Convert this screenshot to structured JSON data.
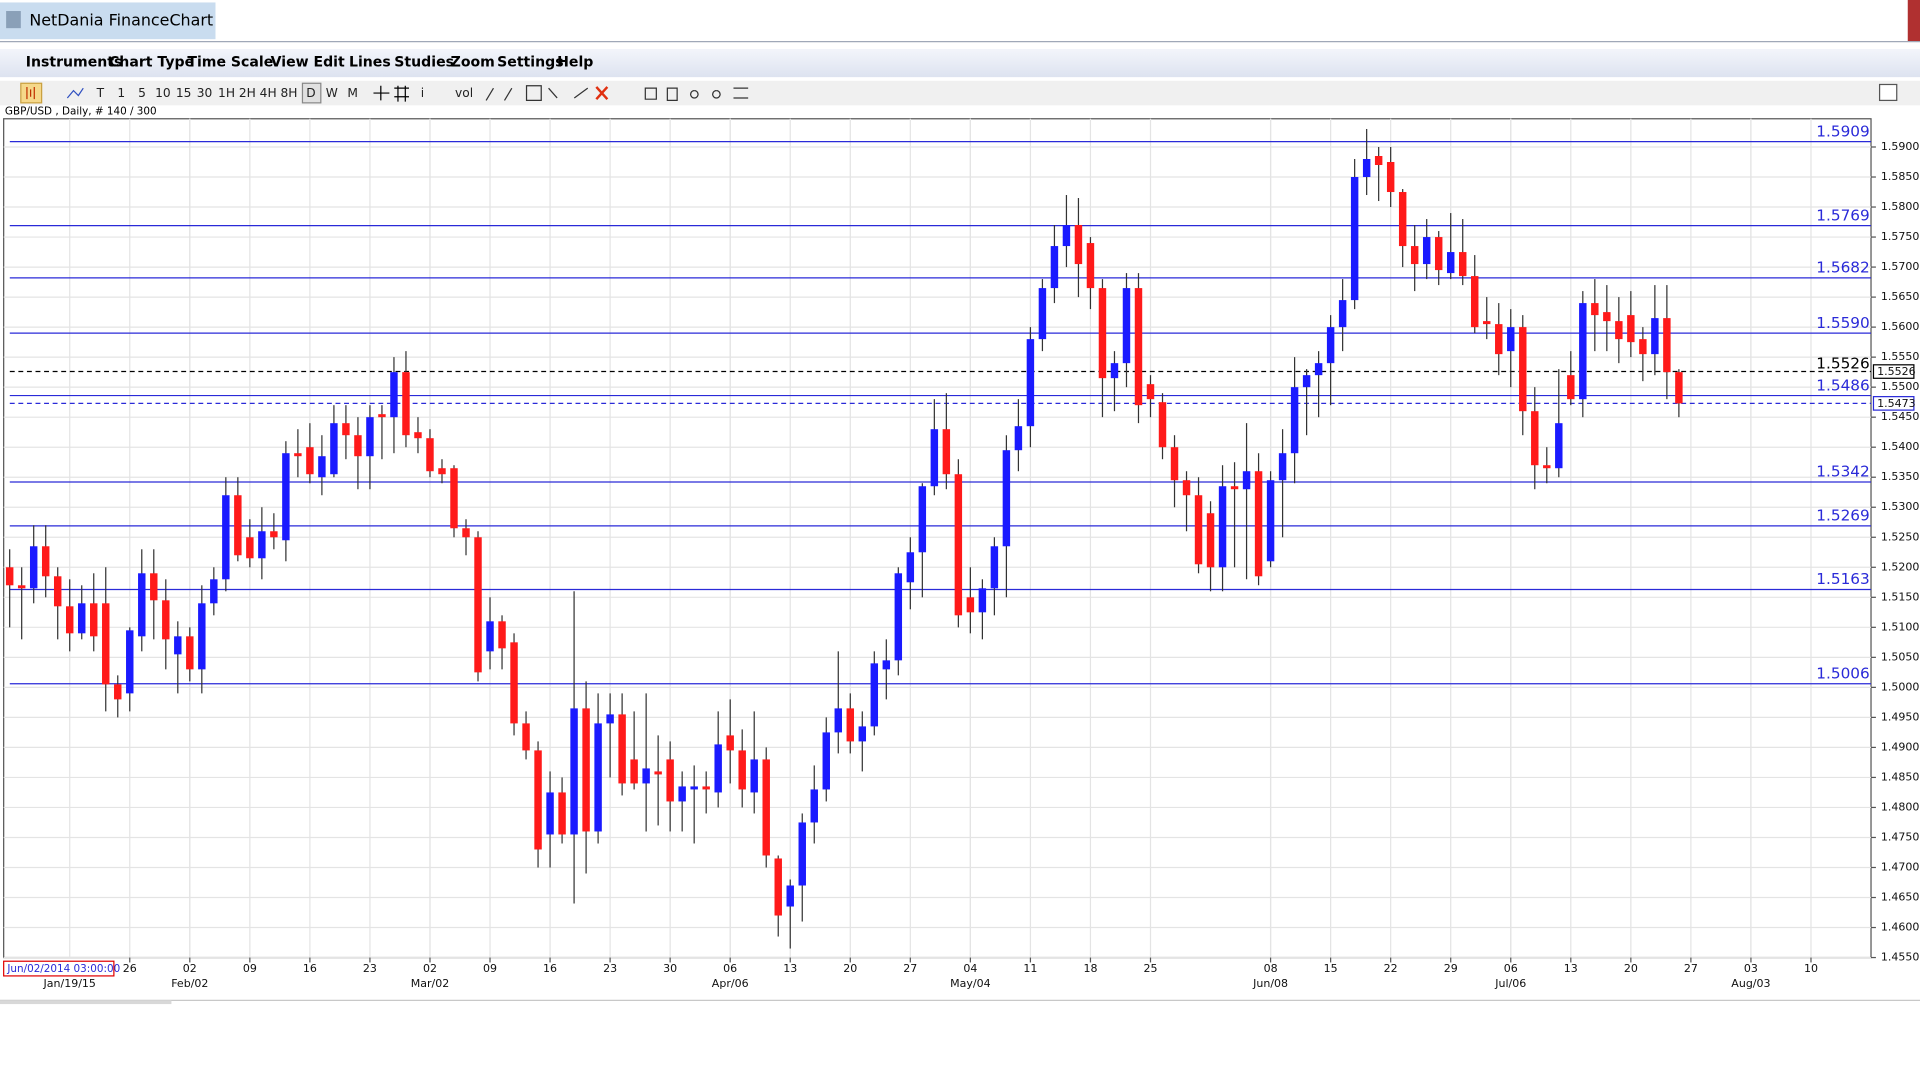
{
  "window": {
    "title": "NetDania FinanceChart",
    "menu": [
      "Instruments",
      "Chart Type",
      "Time Scale",
      "View",
      "Edit",
      "Lines",
      "Studies",
      "Zoom",
      "Settings",
      "Help"
    ],
    "toolbar": [
      "T",
      "1",
      "5",
      "10",
      "15",
      "30",
      "1H",
      "2H",
      "4H",
      "8H",
      "D",
      "W",
      "M",
      "i",
      "vol"
    ],
    "chart_info": "GBP/USD , Daily, # 140 / 300",
    "cursor_date": "Jun/02/2014 03:00:00"
  },
  "chart_data": {
    "type": "candlestick",
    "up_color": "#1a1aff",
    "down_color": "#ff1a1a",
    "open": [
      1.52,
      1.517,
      1.5165,
      1.5235,
      1.5185,
      1.5135,
      1.509,
      1.514,
      1.514,
      1.5005,
      1.499,
      1.5085,
      1.519,
      1.5145,
      1.5055,
      1.5085,
      1.503,
      1.514,
      1.518,
      1.532,
      1.525,
      1.5215,
      1.526,
      1.5245,
      1.539,
      1.54,
      1.535,
      1.5355,
      1.544,
      1.542,
      1.5385,
      1.5455,
      1.545,
      1.5525,
      1.5425,
      1.5415,
      1.5365,
      1.5365,
      1.5265,
      1.525,
      1.506,
      1.511,
      1.5075,
      1.494,
      1.4895,
      1.4755,
      1.4825,
      1.4755,
      1.4965,
      1.476,
      1.494,
      1.4955,
      1.488,
      1.484,
      1.486,
      1.488,
      1.481,
      1.483,
      1.4835,
      1.4825,
      1.492,
      1.4895,
      1.4825,
      1.488,
      1.4715,
      1.4635,
      1.467,
      1.4775,
      1.483,
      1.4925,
      1.4965,
      1.491,
      1.4935,
      1.503,
      1.5045,
      1.5175,
      1.5225,
      1.5335,
      1.543,
      1.5355,
      1.515,
      1.5125,
      1.5165,
      1.5235,
      1.5395,
      1.5435,
      1.558,
      1.5665,
      1.5735,
      1.577,
      1.574,
      1.5665,
      1.5515,
      1.554,
      1.5665,
      1.5505,
      1.5475,
      1.54,
      1.5345,
      1.532,
      1.529,
      1.52,
      1.5335,
      1.533,
      1.536,
      1.521,
      1.5345,
      1.539,
      1.55,
      1.552,
      1.554,
      1.56,
      1.5645,
      1.585,
      1.5885,
      1.5875,
      1.5825,
      1.5735,
      1.5705,
      1.575,
      1.569,
      1.5725,
      1.5685,
      1.561,
      1.5605,
      1.556,
      1.56,
      1.546,
      1.537,
      1.5365,
      1.552,
      1.548,
      1.564,
      1.5625,
      1.561,
      1.562,
      1.558,
      1.5555,
      1.5615,
      1.5525
    ],
    "high": [
      1.523,
      1.52,
      1.527,
      1.527,
      1.52,
      1.518,
      1.517,
      1.519,
      1.52,
      1.502,
      1.51,
      1.523,
      1.523,
      1.518,
      1.511,
      1.51,
      1.517,
      1.52,
      1.535,
      1.535,
      1.528,
      1.53,
      1.529,
      1.541,
      1.543,
      1.544,
      1.542,
      1.547,
      1.547,
      1.545,
      1.547,
      1.547,
      1.555,
      1.556,
      1.545,
      1.543,
      1.538,
      1.537,
      1.528,
      1.526,
      1.515,
      1.512,
      1.509,
      1.496,
      1.491,
      1.486,
      1.485,
      1.516,
      1.501,
      1.499,
      1.499,
      1.499,
      1.496,
      1.499,
      1.492,
      1.491,
      1.486,
      1.487,
      1.486,
      1.496,
      1.498,
      1.493,
      1.496,
      1.49,
      1.472,
      1.468,
      1.479,
      1.487,
      1.495,
      1.506,
      1.499,
      1.496,
      1.506,
      1.508,
      1.52,
      1.525,
      1.534,
      1.548,
      1.549,
      1.538,
      1.52,
      1.518,
      1.525,
      1.542,
      1.548,
      1.56,
      1.568,
      1.577,
      1.582,
      1.5815,
      1.575,
      1.568,
      1.556,
      1.569,
      1.569,
      1.552,
      1.549,
      1.542,
      1.536,
      1.535,
      1.531,
      1.537,
      1.5375,
      1.544,
      1.539,
      1.536,
      1.543,
      1.555,
      1.553,
      1.556,
      1.562,
      1.568,
      1.588,
      1.593,
      1.59,
      1.59,
      1.583,
      1.577,
      1.578,
      1.576,
      1.579,
      1.578,
      1.572,
      1.565,
      1.564,
      1.563,
      1.562,
      1.55,
      1.54,
      1.553,
      1.556,
      1.566,
      1.568,
      1.567,
      1.565,
      1.566,
      1.56,
      1.567,
      1.567,
      1.553
    ],
    "low": [
      1.51,
      1.508,
      1.514,
      1.515,
      1.508,
      1.506,
      1.508,
      1.506,
      1.496,
      1.495,
      1.496,
      1.506,
      1.508,
      1.503,
      1.499,
      1.501,
      1.499,
      1.512,
      1.516,
      1.521,
      1.52,
      1.518,
      1.523,
      1.521,
      1.535,
      1.534,
      1.532,
      1.535,
      1.538,
      1.533,
      1.533,
      1.538,
      1.539,
      1.54,
      1.539,
      1.535,
      1.534,
      1.525,
      1.522,
      1.501,
      1.503,
      1.503,
      1.492,
      1.488,
      1.47,
      1.47,
      1.474,
      1.464,
      1.469,
      1.474,
      1.485,
      1.482,
      1.483,
      1.476,
      1.477,
      1.476,
      1.476,
      1.474,
      1.479,
      1.48,
      1.484,
      1.48,
      1.479,
      1.47,
      1.4585,
      1.4565,
      1.461,
      1.474,
      1.481,
      1.489,
      1.489,
      1.486,
      1.492,
      1.498,
      1.502,
      1.513,
      1.515,
      1.532,
      1.533,
      1.51,
      1.509,
      1.508,
      1.512,
      1.515,
      1.536,
      1.54,
      1.556,
      1.564,
      1.57,
      1.565,
      1.563,
      1.545,
      1.546,
      1.55,
      1.544,
      1.545,
      1.538,
      1.53,
      1.526,
      1.519,
      1.516,
      1.516,
      1.52,
      1.518,
      1.517,
      1.52,
      1.525,
      1.534,
      1.542,
      1.545,
      1.547,
      1.556,
      1.563,
      1.582,
      1.581,
      1.58,
      1.57,
      1.566,
      1.568,
      1.567,
      1.568,
      1.567,
      1.559,
      1.558,
      1.552,
      1.55,
      1.542,
      1.533,
      1.534,
      1.535,
      1.547,
      1.545,
      1.556,
      1.556,
      1.554,
      1.555,
      1.551,
      1.552,
      1.548,
      1.545
    ],
    "close": [
      1.517,
      1.5165,
      1.5235,
      1.5185,
      1.5135,
      1.509,
      1.514,
      1.5085,
      1.5005,
      1.498,
      1.5095,
      1.519,
      1.5145,
      1.508,
      1.5085,
      1.503,
      1.514,
      1.518,
      1.532,
      1.522,
      1.5215,
      1.526,
      1.525,
      1.539,
      1.5385,
      1.5355,
      1.5385,
      1.544,
      1.542,
      1.5385,
      1.545,
      1.545,
      1.5525,
      1.542,
      1.5415,
      1.536,
      1.5355,
      1.5265,
      1.525,
      1.5025,
      1.511,
      1.5065,
      1.494,
      1.4895,
      1.473,
      1.4825,
      1.4755,
      1.4965,
      1.476,
      1.494,
      1.4955,
      1.484,
      1.484,
      1.4865,
      1.4855,
      1.481,
      1.4835,
      1.4835,
      1.483,
      1.4905,
      1.4895,
      1.483,
      1.488,
      1.472,
      1.462,
      1.467,
      1.4775,
      1.483,
      1.4925,
      1.4965,
      1.491,
      1.4935,
      1.504,
      1.5045,
      1.519,
      1.5225,
      1.5335,
      1.543,
      1.5355,
      1.512,
      1.5125,
      1.5165,
      1.5235,
      1.5395,
      1.5435,
      1.558,
      1.5665,
      1.5735,
      1.577,
      1.5705,
      1.5665,
      1.5515,
      1.554,
      1.5665,
      1.547,
      1.548,
      1.54,
      1.5345,
      1.532,
      1.5205,
      1.52,
      1.5335,
      1.533,
      1.536,
      1.5185,
      1.5345,
      1.539,
      1.55,
      1.552,
      1.554,
      1.56,
      1.5645,
      1.585,
      1.588,
      1.587,
      1.5825,
      1.5735,
      1.5705,
      1.575,
      1.5695,
      1.5725,
      1.5685,
      1.56,
      1.5605,
      1.5555,
      1.56,
      1.546,
      1.537,
      1.5365,
      1.544,
      1.548,
      1.564,
      1.562,
      1.561,
      1.558,
      1.5575,
      1.5555,
      1.5615,
      1.5525,
      1.5473
    ],
    "xlim": [
      -0.5,
      155
    ],
    "xticks": [
      {
        "value": 10,
        "label": "26"
      },
      {
        "value": 15,
        "label": "02"
      },
      {
        "value": 20,
        "label": "09"
      },
      {
        "value": 25,
        "label": "16"
      },
      {
        "value": 30,
        "label": "23"
      },
      {
        "value": 35,
        "label": "02"
      },
      {
        "value": 40,
        "label": "09"
      },
      {
        "value": 45,
        "label": "16"
      },
      {
        "value": 50,
        "label": "23"
      },
      {
        "value": 55,
        "label": "30"
      },
      {
        "value": 60,
        "label": "06"
      },
      {
        "value": 65,
        "label": "13"
      },
      {
        "value": 70,
        "label": "20"
      },
      {
        "value": 75,
        "label": "27"
      },
      {
        "value": 80,
        "label": "04"
      },
      {
        "value": 85,
        "label": "11"
      },
      {
        "value": 90,
        "label": "18"
      },
      {
        "value": 95,
        "label": "25"
      },
      {
        "value": 105,
        "label": "08"
      },
      {
        "value": 110,
        "label": "15"
      },
      {
        "value": 115,
        "label": "22"
      },
      {
        "value": 120,
        "label": "29"
      },
      {
        "value": 125,
        "label": "06"
      },
      {
        "value": 130,
        "label": "13"
      },
      {
        "value": 135,
        "label": "20"
      },
      {
        "value": 140,
        "label": "27"
      },
      {
        "value": 145,
        "label": "03"
      },
      {
        "value": 150,
        "label": "10"
      }
    ],
    "xticks_major": [
      {
        "value": 5,
        "label": "Jan/19/15"
      },
      {
        "value": 15,
        "label": "Feb/02"
      },
      {
        "value": 35,
        "label": "Mar/02"
      },
      {
        "value": 60,
        "label": "Apr/06"
      },
      {
        "value": 80,
        "label": "May/04"
      },
      {
        "value": 105,
        "label": "Jun/08"
      },
      {
        "value": 125,
        "label": "Jul/06"
      },
      {
        "value": 145,
        "label": "Aug/03"
      }
    ],
    "ylim": [
      1.455,
      1.5947
    ],
    "yticks": [
      {
        "value": 1.455,
        "label": "1.4550"
      },
      {
        "value": 1.46,
        "label": "1.4600"
      },
      {
        "value": 1.465,
        "label": "1.4650"
      },
      {
        "value": 1.47,
        "label": "1.4700"
      },
      {
        "value": 1.475,
        "label": "1.4750"
      },
      {
        "value": 1.48,
        "label": "1.4800"
      },
      {
        "value": 1.485,
        "label": "1.4850"
      },
      {
        "value": 1.49,
        "label": "1.4900"
      },
      {
        "value": 1.495,
        "label": "1.4950"
      },
      {
        "value": 1.5,
        "label": "1.5000"
      },
      {
        "value": 1.505,
        "label": "1.5050"
      },
      {
        "value": 1.51,
        "label": "1.5100"
      },
      {
        "value": 1.515,
        "label": "1.5150"
      },
      {
        "value": 1.52,
        "label": "1.5200"
      },
      {
        "value": 1.525,
        "label": "1.5250"
      },
      {
        "value": 1.53,
        "label": "1.5300"
      },
      {
        "value": 1.535,
        "label": "1.5350"
      },
      {
        "value": 1.54,
        "label": "1.5400"
      },
      {
        "value": 1.545,
        "label": "1.5450"
      },
      {
        "value": 1.55,
        "label": "1.5500"
      },
      {
        "value": 1.555,
        "label": "1.5550"
      },
      {
        "value": 1.56,
        "label": "1.5600"
      },
      {
        "value": 1.565,
        "label": "1.5650"
      },
      {
        "value": 1.57,
        "label": "1.5700"
      },
      {
        "value": 1.575,
        "label": "1.5750"
      },
      {
        "value": 1.58,
        "label": "1.5800"
      },
      {
        "value": 1.585,
        "label": "1.5850"
      },
      {
        "value": 1.59,
        "label": "1.5900"
      }
    ],
    "grid": true,
    "levels": [
      1.5909,
      1.5769,
      1.5682,
      {
        "value": 1.559,
        "label": "1.5590"
      },
      1.5486,
      1.5342,
      1.5269,
      1.5163,
      1.5006
    ],
    "level_color": "#2a2ad8",
    "last_close": {
      "value": 1.5526,
      "color": "#000000"
    },
    "prev_close": {
      "value": 1.5473,
      "color": "#2a2ad8"
    },
    "tag_color": "#e00000"
  }
}
